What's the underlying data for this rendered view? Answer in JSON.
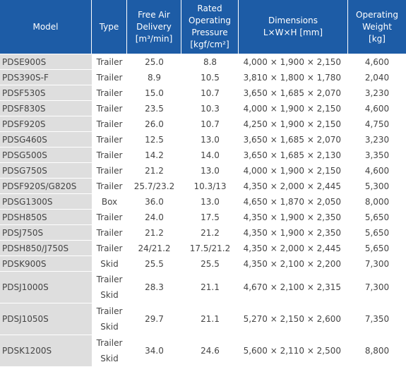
{
  "table": {
    "headers": {
      "model": [
        "Model"
      ],
      "type": [
        "Type"
      ],
      "fad": [
        "Free Air",
        "Delivery",
        "[m³/min]"
      ],
      "pressure": [
        "Rated",
        "Operating",
        "Pressure",
        "[kgf/cm²]"
      ],
      "dimensions": [
        "Dimensions",
        "L×W×H [mm]"
      ],
      "weight": [
        "Operating",
        "Weight",
        "[kg]"
      ]
    },
    "rows": [
      {
        "model": "PDSE900S",
        "type": [
          "Trailer"
        ],
        "fad": "25.0",
        "pressure": "8.8",
        "dimensions": "4,000 × 1,900 × 2,150",
        "weight": "4,600"
      },
      {
        "model": "PDS390S-F",
        "type": [
          "Trailer"
        ],
        "fad": "8.9",
        "pressure": "10.5",
        "dimensions": "3,810 × 1,800 × 1,780",
        "weight": "2,040"
      },
      {
        "model": "PDSF530S",
        "type": [
          "Trailer"
        ],
        "fad": "15.0",
        "pressure": "10.7",
        "dimensions": "3,650 × 1,685 × 2,070",
        "weight": "3,230"
      },
      {
        "model": "PDSF830S",
        "type": [
          "Trailer"
        ],
        "fad": "23.5",
        "pressure": "10.3",
        "dimensions": "4,000 × 1,900 × 2,150",
        "weight": "4,600"
      },
      {
        "model": "PDSF920S",
        "type": [
          "Trailer"
        ],
        "fad": "26.0",
        "pressure": "10.7",
        "dimensions": "4,250 × 1,900 × 2,150",
        "weight": "4,750"
      },
      {
        "model": "PDSG460S",
        "type": [
          "Trailer"
        ],
        "fad": "12.5",
        "pressure": "13.0",
        "dimensions": "3,650 × 1,685 × 2,070",
        "weight": "3,230"
      },
      {
        "model": "PDSG500S",
        "type": [
          "Trailer"
        ],
        "fad": "14.2",
        "pressure": "14.0",
        "dimensions": "3,650 × 1,685 × 2,130",
        "weight": "3,350"
      },
      {
        "model": "PDSG750S",
        "type": [
          "Trailer"
        ],
        "fad": "21.2",
        "pressure": "13.0",
        "dimensions": "4,000 × 1,900 × 2,150",
        "weight": "4,600"
      },
      {
        "model": "PDSF920S/G820S",
        "type": [
          "Trailer"
        ],
        "fad": "25.7/23.2",
        "pressure": "10.3/13",
        "dimensions": "4,350 × 2,000 × 2,445",
        "weight": "5,300"
      },
      {
        "model": "PDSG1300S",
        "type": [
          "Box"
        ],
        "fad": "36.0",
        "pressure": "13.0",
        "dimensions": "4,650 × 1,870 × 2,050",
        "weight": "8,000"
      },
      {
        "model": "PDSH850S",
        "type": [
          "Trailer"
        ],
        "fad": "24.0",
        "pressure": "17.5",
        "dimensions": "4,350 × 1,900 × 2,350",
        "weight": "5,650"
      },
      {
        "model": "PDSJ750S",
        "type": [
          "Trailer"
        ],
        "fad": "21.2",
        "pressure": "21.2",
        "dimensions": "4,350 × 1,900 × 2,350",
        "weight": "5,650"
      },
      {
        "model": "PDSH850/J750S",
        "type": [
          "Trailer"
        ],
        "fad": "24/21.2",
        "pressure": "17.5/21.2",
        "dimensions": "4,350 × 2,000 × 2,445",
        "weight": "5,650"
      },
      {
        "model": "PDSK900S",
        "type": [
          "Skid"
        ],
        "fad": "25.5",
        "pressure": "25.5",
        "dimensions": "4,350 × 2,100 × 2,200",
        "weight": "7,300"
      },
      {
        "model": "PDSJ1000S",
        "type": [
          "Trailer",
          "Skid"
        ],
        "fad": "28.3",
        "pressure": "21.1",
        "dimensions": "4,670 × 2,100 × 2,315",
        "weight": "7,300"
      },
      {
        "model": "PDSJ1050S",
        "type": [
          "Trailer",
          "Skid"
        ],
        "fad": "29.7",
        "pressure": "21.1",
        "dimensions": "5,270 × 2,150 × 2,600",
        "weight": "7,350"
      },
      {
        "model": "PDSK1200S",
        "type": [
          "Trailer",
          "Skid"
        ],
        "fad": "34.0",
        "pressure": "24.6",
        "dimensions": "5,600 × 2,110 × 2,500",
        "weight": "8,800"
      }
    ],
    "colors": {
      "header_bg": "#1d5ca6",
      "header_text": "#ffffff",
      "model_cell_bg": "#dedede",
      "body_text": "#444444"
    }
  }
}
